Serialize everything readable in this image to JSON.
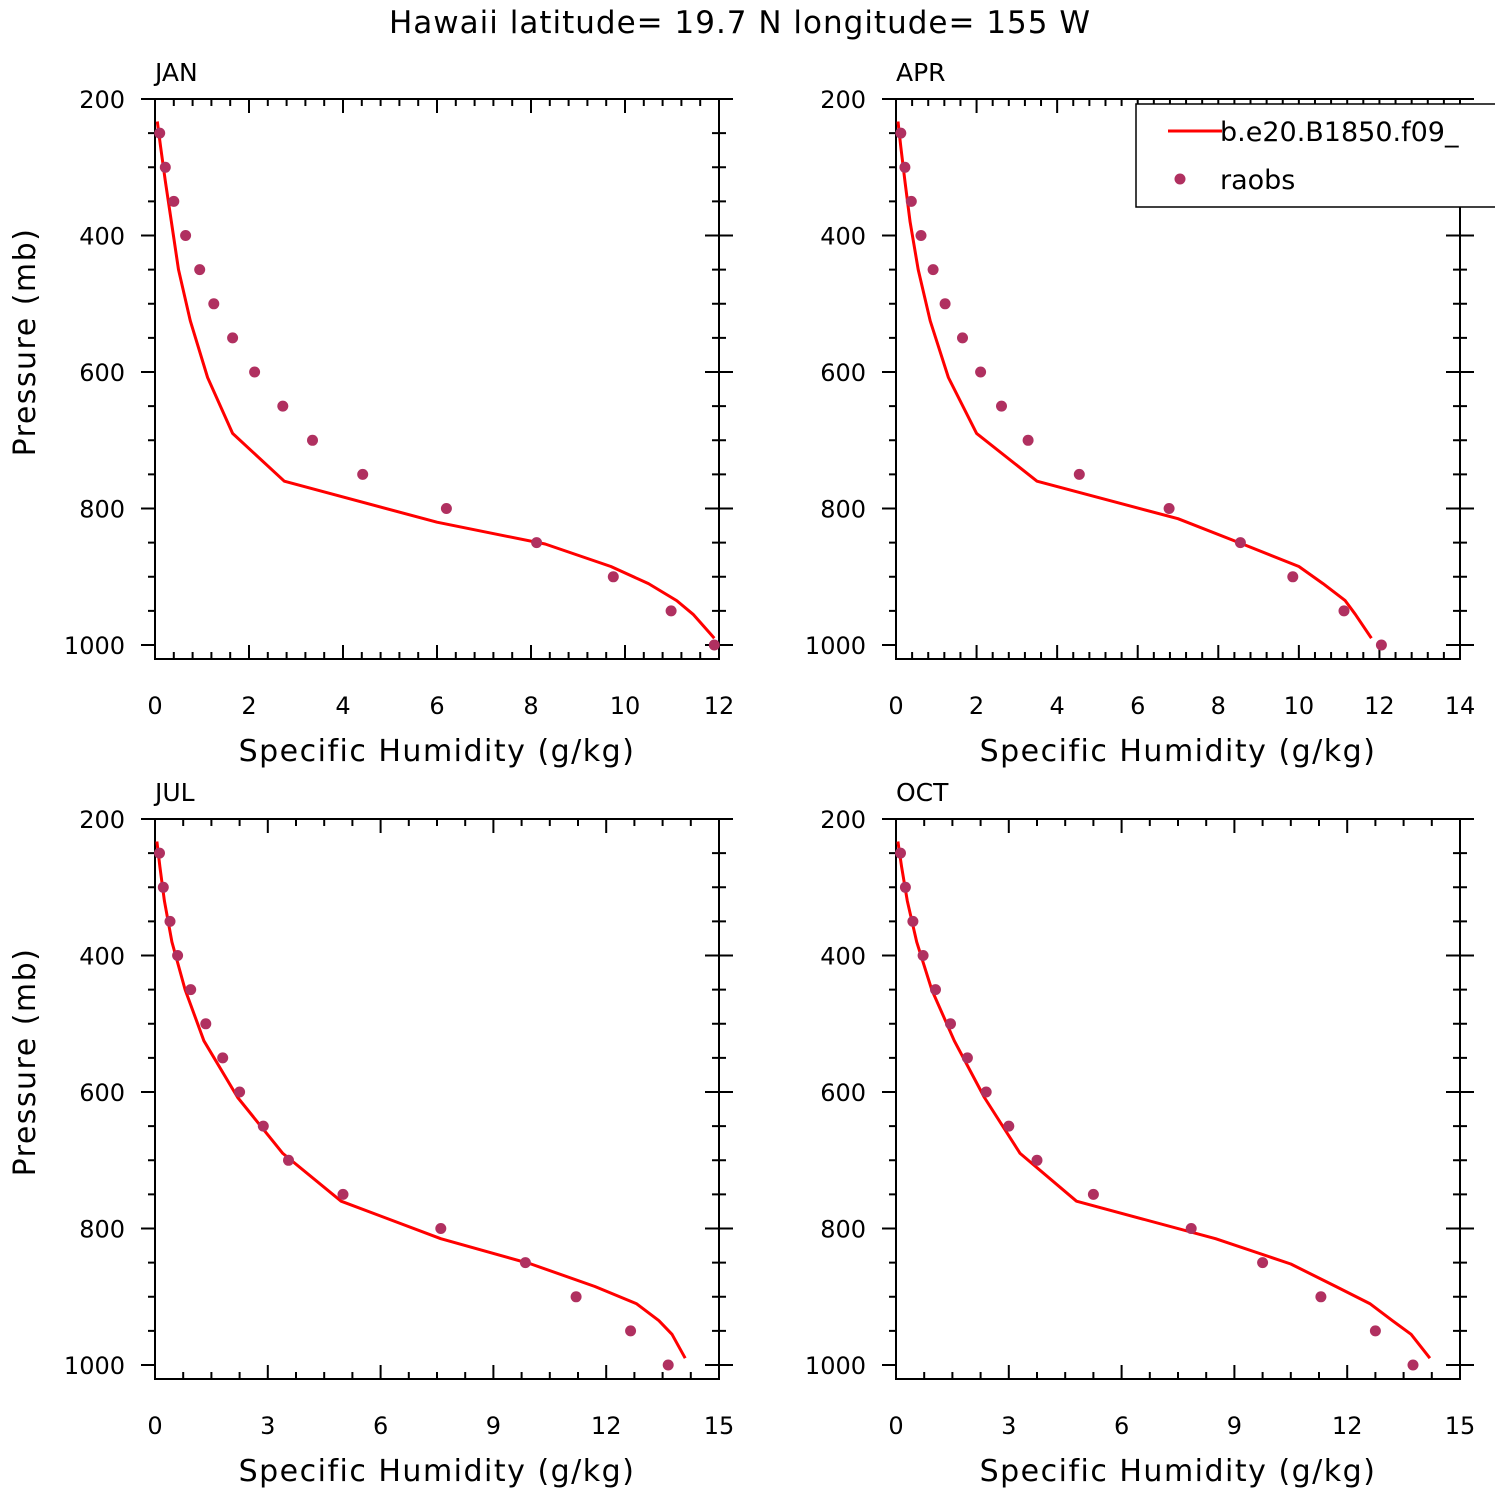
{
  "title": "Hawaii  latitude= 19.7 N longitude= 155 W",
  "legend": {
    "model_label": "b.e20.B1850.f09_",
    "obs_label": "raobs",
    "model_color": "#ff0000",
    "obs_color": "#b03060"
  },
  "chart_data": [
    {
      "type": "line",
      "panel": "JAN",
      "xlabel": "Specific Humidity (g/kg)",
      "ylabel": "Pressure (mb)",
      "xlim": [
        0,
        12
      ],
      "ylim": [
        200,
        1000
      ],
      "y_inverted": true,
      "xticks": [
        0,
        2,
        4,
        6,
        8,
        10,
        12
      ],
      "xtick_labels": [
        "0",
        "2",
        "4",
        "6",
        "8",
        "10",
        "12"
      ],
      "yticks": [
        200,
        400,
        600,
        800,
        1000
      ],
      "ytick_labels": [
        "200",
        "400",
        "600",
        "800",
        "1000"
      ],
      "series": [
        {
          "name": "b.e20.B1850.f09_",
          "style": "line",
          "color": "#ff0000",
          "points": [
            [
              0.05,
              233
            ],
            [
              0.12,
              270
            ],
            [
              0.22,
              320
            ],
            [
              0.35,
              380
            ],
            [
              0.5,
              450
            ],
            [
              0.75,
              525
            ],
            [
              1.12,
              608
            ],
            [
              1.65,
              690
            ],
            [
              2.75,
              760
            ],
            [
              6.0,
              820
            ],
            [
              8.3,
              852
            ],
            [
              9.7,
              885
            ],
            [
              10.5,
              910
            ],
            [
              11.1,
              935
            ],
            [
              11.45,
              955
            ],
            [
              11.9,
              990
            ]
          ]
        },
        {
          "name": "raobs",
          "style": "markers",
          "color": "#b03060",
          "points": [
            [
              0.1,
              250
            ],
            [
              0.22,
              300
            ],
            [
              0.4,
              350
            ],
            [
              0.65,
              400
            ],
            [
              0.95,
              450
            ],
            [
              1.25,
              500
            ],
            [
              1.65,
              550
            ],
            [
              2.12,
              600
            ],
            [
              2.72,
              650
            ],
            [
              3.35,
              700
            ],
            [
              4.42,
              750
            ],
            [
              6.2,
              800
            ],
            [
              8.12,
              850
            ],
            [
              9.75,
              900
            ],
            [
              10.98,
              950
            ],
            [
              11.9,
              1000
            ]
          ]
        }
      ]
    },
    {
      "type": "line",
      "panel": "APR",
      "xlabel": "Specific Humidity (g/kg)",
      "ylabel": "",
      "xlim": [
        0,
        14
      ],
      "ylim": [
        200,
        1000
      ],
      "y_inverted": true,
      "xticks": [
        0,
        2,
        4,
        6,
        8,
        10,
        12,
        14
      ],
      "xtick_labels": [
        "0",
        "2",
        "4",
        "6",
        "8",
        "10",
        "12",
        "14"
      ],
      "yticks": [
        200,
        400,
        600,
        800,
        1000
      ],
      "ytick_labels": [
        "200",
        "400",
        "600",
        "800",
        "1000"
      ],
      "series": [
        {
          "name": "b.e20.B1850.f09_",
          "style": "line",
          "color": "#ff0000",
          "points": [
            [
              0.05,
              233
            ],
            [
              0.12,
              270
            ],
            [
              0.22,
              320
            ],
            [
              0.35,
              380
            ],
            [
              0.55,
              450
            ],
            [
              0.85,
              525
            ],
            [
              1.3,
              608
            ],
            [
              2.0,
              690
            ],
            [
              3.5,
              760
            ],
            [
              7.0,
              815
            ],
            [
              8.6,
              852
            ],
            [
              10.0,
              885
            ],
            [
              10.6,
              910
            ],
            [
              11.15,
              935
            ],
            [
              11.4,
              955
            ],
            [
              11.8,
              990
            ]
          ]
        },
        {
          "name": "raobs",
          "style": "markers",
          "color": "#b03060",
          "points": [
            [
              0.12,
              250
            ],
            [
              0.22,
              300
            ],
            [
              0.38,
              350
            ],
            [
              0.62,
              400
            ],
            [
              0.92,
              450
            ],
            [
              1.22,
              500
            ],
            [
              1.65,
              550
            ],
            [
              2.1,
              600
            ],
            [
              2.62,
              650
            ],
            [
              3.28,
              700
            ],
            [
              4.55,
              750
            ],
            [
              6.78,
              800
            ],
            [
              8.55,
              850
            ],
            [
              9.85,
              900
            ],
            [
              11.12,
              950
            ],
            [
              12.05,
              1000
            ]
          ]
        }
      ]
    },
    {
      "type": "line",
      "panel": "JUL",
      "xlabel": "Specific Humidity (g/kg)",
      "ylabel": "Pressure (mb)",
      "xlim": [
        0,
        15
      ],
      "ylim": [
        200,
        1000
      ],
      "y_inverted": true,
      "xticks": [
        0,
        3,
        6,
        9,
        12,
        15
      ],
      "xtick_labels": [
        "0",
        "3",
        "6",
        "9",
        "12",
        "15"
      ],
      "yticks": [
        200,
        400,
        600,
        800,
        1000
      ],
      "ytick_labels": [
        "200",
        "400",
        "600",
        "800",
        "1000"
      ],
      "series": [
        {
          "name": "b.e20.B1850.f09_",
          "style": "line",
          "color": "#ff0000",
          "points": [
            [
              0.05,
              233
            ],
            [
              0.13,
              270
            ],
            [
              0.25,
              320
            ],
            [
              0.45,
              380
            ],
            [
              0.8,
              450
            ],
            [
              1.3,
              525
            ],
            [
              2.2,
              608
            ],
            [
              3.4,
              690
            ],
            [
              4.95,
              760
            ],
            [
              7.6,
              815
            ],
            [
              10.0,
              852
            ],
            [
              11.7,
              885
            ],
            [
              12.8,
              910
            ],
            [
              13.4,
              935
            ],
            [
              13.75,
              955
            ],
            [
              14.1,
              990
            ]
          ]
        },
        {
          "name": "raobs",
          "style": "markers",
          "color": "#b03060",
          "points": [
            [
              0.12,
              250
            ],
            [
              0.22,
              300
            ],
            [
              0.4,
              350
            ],
            [
              0.6,
              400
            ],
            [
              0.95,
              450
            ],
            [
              1.35,
              500
            ],
            [
              1.8,
              550
            ],
            [
              2.25,
              600
            ],
            [
              2.88,
              650
            ],
            [
              3.55,
              700
            ],
            [
              5.0,
              750
            ],
            [
              7.6,
              800
            ],
            [
              9.85,
              850
            ],
            [
              11.2,
              900
            ],
            [
              12.65,
              950
            ],
            [
              13.65,
              1000
            ]
          ]
        }
      ]
    },
    {
      "type": "line",
      "panel": "OCT",
      "xlabel": "Specific Humidity (g/kg)",
      "ylabel": "",
      "xlim": [
        0,
        15
      ],
      "ylim": [
        200,
        1000
      ],
      "y_inverted": true,
      "xticks": [
        0,
        3,
        6,
        9,
        12,
        15
      ],
      "xtick_labels": [
        "0",
        "3",
        "6",
        "9",
        "12",
        "15"
      ],
      "yticks": [
        200,
        400,
        600,
        800,
        1000
      ],
      "ytick_labels": [
        "200",
        "400",
        "600",
        "800",
        "1000"
      ],
      "series": [
        {
          "name": "b.e20.B1850.f09_",
          "style": "line",
          "color": "#ff0000",
          "points": [
            [
              0.05,
              233
            ],
            [
              0.15,
              270
            ],
            [
              0.3,
              320
            ],
            [
              0.55,
              380
            ],
            [
              0.95,
              450
            ],
            [
              1.55,
              525
            ],
            [
              2.35,
              608
            ],
            [
              3.3,
              690
            ],
            [
              4.8,
              760
            ],
            [
              8.5,
              815
            ],
            [
              10.5,
              852
            ],
            [
              11.7,
              885
            ],
            [
              12.6,
              910
            ],
            [
              13.2,
              935
            ],
            [
              13.7,
              955
            ],
            [
              14.2,
              990
            ]
          ]
        },
        {
          "name": "raobs",
          "style": "markers",
          "color": "#b03060",
          "points": [
            [
              0.12,
              250
            ],
            [
              0.25,
              300
            ],
            [
              0.45,
              350
            ],
            [
              0.72,
              400
            ],
            [
              1.05,
              450
            ],
            [
              1.45,
              500
            ],
            [
              1.9,
              550
            ],
            [
              2.4,
              600
            ],
            [
              3.0,
              650
            ],
            [
              3.75,
              700
            ],
            [
              5.25,
              750
            ],
            [
              7.85,
              800
            ],
            [
              9.75,
              850
            ],
            [
              11.3,
              900
            ],
            [
              12.75,
              950
            ],
            [
              13.75,
              1000
            ]
          ]
        }
      ]
    }
  ]
}
